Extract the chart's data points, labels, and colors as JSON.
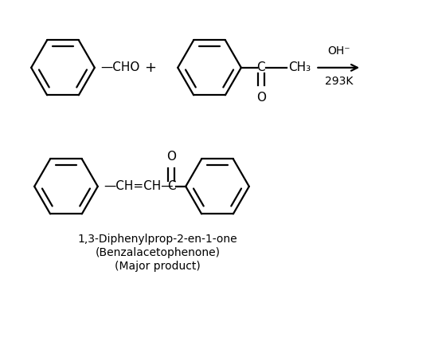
{
  "bg_color": "#ffffff",
  "line_color": "#000000",
  "text_color": "#000000",
  "figsize": [
    5.45,
    4.29
  ],
  "dpi": 100,
  "reaction_label_top": "OH⁻",
  "reaction_label_bottom": "293K",
  "product_name_line1": "1,3-Diphenylprop-2-en-1-one",
  "product_name_line2": "(Benzalacetophenone)",
  "product_name_line3": "(Major product)",
  "font_size_main": 11,
  "font_size_small": 10,
  "font_size_label": 10
}
